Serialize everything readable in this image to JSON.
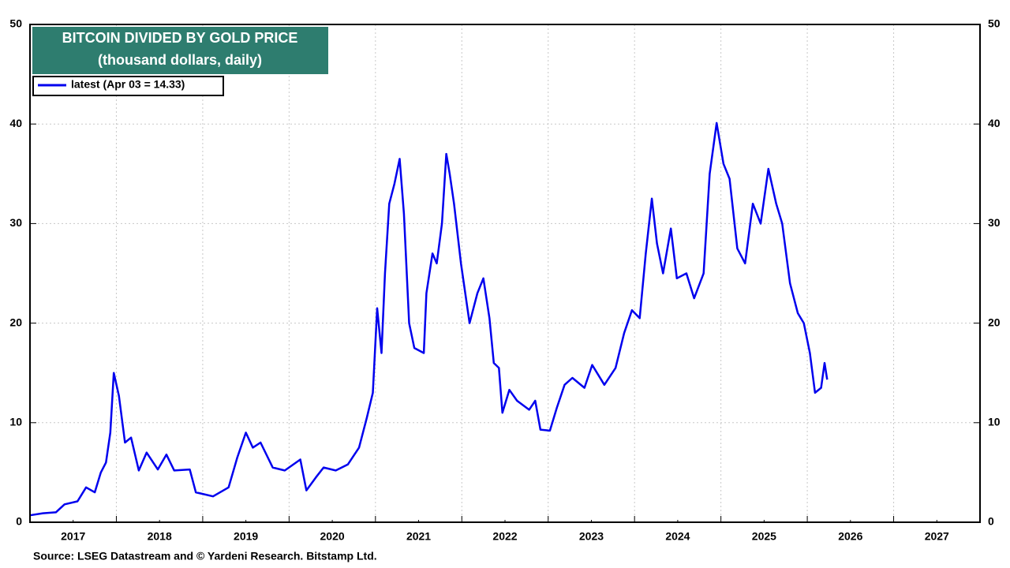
{
  "chart_data": {
    "type": "line",
    "title": "BITCOIN DIVIDED BY GOLD PRICE",
    "subtitle": "(thousand dollars, daily)",
    "source": "Source: LSEG Datastream and © Yardeni Research. Bitstamp Ltd.",
    "legend": "top-left",
    "grid": true,
    "xlim": [
      2017,
      2028
    ],
    "xticks": [
      {
        "value": 2017.5,
        "label": "2017"
      },
      {
        "value": 2018.5,
        "label": "2018"
      },
      {
        "value": 2019.5,
        "label": "2019"
      },
      {
        "value": 2020.5,
        "label": "2020"
      },
      {
        "value": 2021.5,
        "label": "2021"
      },
      {
        "value": 2022.5,
        "label": "2022"
      },
      {
        "value": 2023.5,
        "label": "2023"
      },
      {
        "value": 2024.5,
        "label": "2024"
      },
      {
        "value": 2025.5,
        "label": "2025"
      },
      {
        "value": 2026.5,
        "label": "2026"
      },
      {
        "value": 2027.5,
        "label": "2027"
      }
    ],
    "ylim": [
      0,
      50
    ],
    "yticks": [
      0,
      10,
      20,
      30,
      40,
      50
    ],
    "x": [
      2017.0,
      2017.15,
      2017.3,
      2017.4,
      2017.55,
      2017.65,
      2017.75,
      2017.82,
      2017.88,
      2017.93,
      2017.97,
      2018.03,
      2018.1,
      2018.17,
      2018.26,
      2018.35,
      2018.48,
      2018.58,
      2018.67,
      2018.85,
      2018.92,
      2019.12,
      2019.3,
      2019.4,
      2019.5,
      2019.58,
      2019.67,
      2019.81,
      2019.95,
      2020.13,
      2020.2,
      2020.31,
      2020.4,
      2020.54,
      2020.68,
      2020.81,
      2020.9,
      2020.97,
      2021.02,
      2021.07,
      2021.11,
      2021.16,
      2021.22,
      2021.28,
      2021.33,
      2021.39,
      2021.45,
      2021.56,
      2021.59,
      2021.66,
      2021.71,
      2021.77,
      2021.82,
      2021.86,
      2021.91,
      2021.99,
      2022.09,
      2022.18,
      2022.25,
      2022.32,
      2022.37,
      2022.43,
      2022.47,
      2022.55,
      2022.64,
      2022.78,
      2022.85,
      2022.91,
      2023.02,
      2023.1,
      2023.19,
      2023.28,
      2023.42,
      2023.51,
      2023.65,
      2023.78,
      2023.88,
      2023.97,
      2024.06,
      2024.13,
      2024.2,
      2024.26,
      2024.33,
      2024.42,
      2024.49,
      2024.6,
      2024.69,
      2024.8,
      2024.87,
      2024.95,
      2025.03,
      2025.1,
      2025.19,
      2025.28,
      2025.37,
      2025.46,
      2025.55,
      2025.64,
      2025.71,
      2025.8,
      2025.89,
      2025.96,
      2026.03,
      2026.09,
      2026.16,
      2026.2,
      2026.23
    ],
    "series": [
      {
        "name": "latest (Apr 03 = 14.33)",
        "color": "#0000ee",
        "values": [
          0.7,
          0.9,
          1.0,
          1.8,
          2.1,
          3.5,
          3.0,
          5.0,
          6.0,
          9.0,
          15.0,
          12.7,
          8.0,
          8.5,
          5.2,
          7.0,
          5.3,
          6.8,
          5.2,
          5.3,
          3.0,
          2.6,
          3.5,
          6.5,
          9.0,
          7.5,
          8.0,
          5.5,
          5.2,
          6.3,
          3.2,
          4.5,
          5.5,
          5.2,
          5.8,
          7.5,
          10.5,
          13.0,
          21.5,
          17.0,
          25.0,
          32.0,
          34.0,
          36.5,
          31.0,
          20.0,
          17.5,
          17.0,
          23.0,
          27.0,
          26.0,
          30.0,
          37.0,
          35.0,
          32.0,
          26.0,
          20.0,
          23.0,
          24.5,
          20.5,
          16.0,
          15.5,
          11.0,
          13.3,
          12.2,
          11.3,
          12.2,
          9.3,
          9.2,
          11.5,
          13.8,
          14.5,
          13.5,
          15.8,
          13.8,
          15.5,
          19.0,
          21.3,
          20.5,
          27.0,
          32.5,
          28.0,
          25.0,
          29.5,
          24.5,
          25.0,
          22.5,
          25.0,
          35.0,
          40.1,
          36.0,
          34.5,
          27.5,
          26.0,
          32.0,
          30.0,
          35.5,
          32.0,
          30.0,
          24.0,
          21.0,
          20.0,
          17.0,
          13.0,
          13.5,
          16.0,
          14.33
        ]
      }
    ]
  }
}
